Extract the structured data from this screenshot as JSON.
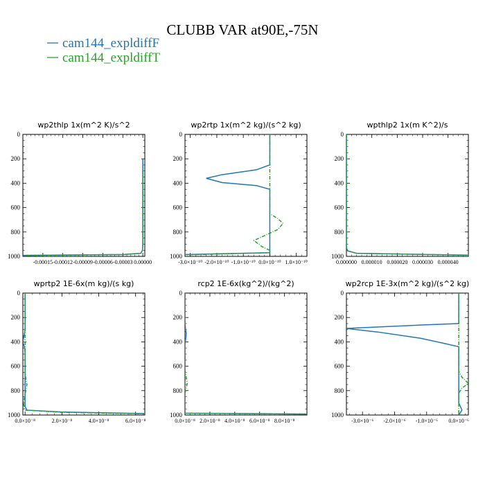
{
  "figure": {
    "title": "CLUBB VAR at90E,-75N",
    "legend": [
      {
        "name": "cam144_expldiffF",
        "color": "#1f77b4"
      },
      {
        "name": "cam144_expldiffT",
        "color": "#2ca02c"
      }
    ]
  },
  "chart_data": [
    {
      "type": "line",
      "title": "wp2thlp   1x(m^2 K)/s^2",
      "ylim": [
        1000,
        0
      ],
      "xlim": [
        -0.00018,
        3e-06
      ],
      "yticks": [
        0,
        200,
        400,
        600,
        800,
        1000
      ],
      "ytick_labels": [
        "0",
        "200",
        "400",
        "600",
        "800",
        "1000"
      ],
      "xticks": [
        -0.00015,
        -0.00012,
        -9e-05,
        -6e-05,
        -3e-05,
        0.0
      ],
      "xtick_labels": [
        "-0.00015",
        "-0.00012",
        "-0.00009",
        "-0.00006",
        "-0.00003",
        "0.00000"
      ],
      "series": [
        {
          "name": "cam144_expldiffF",
          "dashed": false,
          "color": "#1f77b4",
          "x": [
            0,
            0,
            0,
            0,
            -5e-07,
            -3e-06,
            -3e-05,
            -0.00018
          ],
          "y": [
            200,
            300,
            800,
            900,
            950,
            975,
            985,
            992
          ]
        },
        {
          "name": "cam144_expldiffT",
          "dashed": true,
          "color": "#2ca02c",
          "x": [
            0,
            0,
            0,
            -5e-07,
            -3e-06,
            -3e-05,
            -0.00018
          ],
          "y": [
            300,
            800,
            900,
            950,
            975,
            985,
            992
          ]
        }
      ]
    },
    {
      "type": "line",
      "title": "wp2rtp   1x(m^2 kg)/(s^2 kg)",
      "ylim": [
        1000,
        0
      ],
      "xlim": [
        -3.2e-10,
        1.4e-10
      ],
      "yticks": [
        0,
        200,
        400,
        600,
        800,
        1000
      ],
      "ytick_labels": [
        "0",
        "200",
        "400",
        "600",
        "800",
        "1000"
      ],
      "xticks": [
        -3e-10,
        -2e-10,
        -1e-10,
        0,
        1e-10
      ],
      "xtick_labels": [
        "-3.0×10⁻¹⁰",
        "-2.0×10⁻¹⁰",
        "-1.0×10⁻¹⁰",
        "0.0×10⁻¹⁰",
        "1.0×10⁻¹⁰"
      ],
      "series": [
        {
          "name": "cam144_expldiffF",
          "dashed": false,
          "color": "#1f77b4",
          "x": [
            0,
            0,
            -5e-11,
            -1.8e-10,
            -2.4e-10,
            -1.8e-10,
            -5e-11,
            0,
            0,
            -3.2e-10
          ],
          "y": [
            0,
            250,
            290,
            330,
            360,
            395,
            420,
            450,
            970,
            985
          ]
        },
        {
          "name": "cam144_expldiffT",
          "dashed": true,
          "color": "#2ca02c",
          "x": [
            0,
            0,
            3e-11,
            5e-11,
            3e-11,
            0,
            -3e-11,
            -6e-11,
            -3e-11,
            0,
            0,
            -3.2e-10
          ],
          "y": [
            0,
            650,
            690,
            730,
            780,
            810,
            840,
            870,
            920,
            950,
            970,
            988
          ]
        }
      ]
    },
    {
      "type": "line",
      "title": "wpthlp2   1x(m K^2)/s",
      "ylim": [
        1000,
        0
      ],
      "xlim": [
        0,
        4.8e-05
      ],
      "yticks": [
        0,
        200,
        400,
        600,
        800,
        1000
      ],
      "ytick_labels": [
        "0",
        "200",
        "400",
        "600",
        "800",
        "1000"
      ],
      "xticks": [
        0,
        1e-05,
        2e-05,
        3e-05,
        4e-05
      ],
      "xtick_labels": [
        "0.000000",
        "0.000010",
        "0.000020",
        "0.000030",
        "0.000040"
      ],
      "series": [
        {
          "name": "cam144_expldiffF",
          "dashed": false,
          "color": "#1f77b4",
          "x": [
            0,
            0,
            5e-07,
            4e-06,
            4.8e-05
          ],
          "y": [
            0,
            930,
            955,
            975,
            990
          ]
        },
        {
          "name": "cam144_expldiffT",
          "dashed": true,
          "color": "#2ca02c",
          "x": [
            0,
            0,
            5e-07,
            4e-06,
            4.8e-05
          ],
          "y": [
            0,
            930,
            955,
            975,
            990
          ]
        }
      ]
    },
    {
      "type": "line",
      "title": "wprtp2   1E-6x(m kg)/(s kg)",
      "ylim": [
        1000,
        0
      ],
      "xlim": [
        -1.2e-09,
        6.5e-08
      ],
      "yticks": [
        0,
        200,
        400,
        600,
        800,
        1000
      ],
      "ytick_labels": [
        "0",
        "200",
        "400",
        "600",
        "800",
        "1000"
      ],
      "xticks": [
        0,
        2e-08,
        4e-08,
        6e-08
      ],
      "xtick_labels": [
        "0.0×10⁻⁸",
        "2.0×10⁻⁸",
        "4.0×10⁻⁸",
        "6.0×10⁻⁸"
      ],
      "series": [
        {
          "name": "cam144_expldiffF",
          "dashed": false,
          "color": "#1f77b4",
          "x": [
            0,
            0,
            -2e-10,
            -1.2e-09,
            -2e-10,
            0,
            0,
            1e-09,
            2e-08,
            6.5e-08
          ],
          "y": [
            0,
            280,
            320,
            400,
            450,
            500,
            930,
            960,
            975,
            988
          ]
        },
        {
          "name": "cam144_expldiffT",
          "dashed": true,
          "color": "#2ca02c",
          "x": [
            0,
            0,
            4e-10,
            1e-09,
            4e-10,
            0,
            -4e-10,
            -9e-10,
            -4e-10,
            0,
            2e-08,
            6.5e-08
          ],
          "y": [
            0,
            650,
            700,
            750,
            800,
            830,
            860,
            900,
            940,
            960,
            978,
            990
          ]
        }
      ]
    },
    {
      "type": "line",
      "title": "rcp2   1E-6x(kg^2)/(kg^2)",
      "ylim": [
        1000,
        0
      ],
      "xlim": [
        0,
        9.8e-08
      ],
      "yticks": [
        0,
        200,
        400,
        600,
        800,
        1000
      ],
      "ytick_labels": [
        "0",
        "200",
        "400",
        "600",
        "800",
        "1000"
      ],
      "xticks": [
        0,
        2e-08,
        4e-08,
        6e-08,
        8e-08
      ],
      "xtick_labels": [
        "0.0×10⁻⁸",
        "2.0×10⁻⁸",
        "4.0×10⁻⁸",
        "6.0×10⁻⁸",
        "8.0×10⁻⁸"
      ],
      "series": [
        {
          "name": "cam144_expldiffF",
          "dashed": false,
          "color": "#1f77b4",
          "x": [
            0,
            0,
            5e-10,
            1e-09,
            5e-10,
            0,
            0,
            9.8e-08
          ],
          "y": [
            0,
            250,
            300,
            330,
            380,
            420,
            985,
            992
          ]
        },
        {
          "name": "cam144_expldiffT",
          "dashed": true,
          "color": "#2ca02c",
          "x": [
            0,
            0,
            8e-10,
            1.8e-09,
            8e-10,
            0,
            0,
            9.8e-08
          ],
          "y": [
            0,
            640,
            680,
            740,
            790,
            820,
            985,
            992
          ]
        }
      ]
    },
    {
      "type": "line",
      "title": "wp2rcp   1E-3x(m^2 kg)/(s^2 kg)",
      "ylim": [
        1000,
        0
      ],
      "xlim": [
        -3.5e-06,
        3e-07
      ],
      "yticks": [
        0,
        200,
        400,
        600,
        800,
        1000
      ],
      "ytick_labels": [
        "0",
        "200",
        "400",
        "600",
        "800",
        "1000"
      ],
      "xticks": [
        -3e-06,
        -2e-06,
        -1e-06,
        0
      ],
      "xtick_labels": [
        "-3.0×10⁻⁶",
        "-2.0×10⁻⁶",
        "-1.0×10⁻⁶",
        "0.0×10⁻⁶"
      ],
      "series": [
        {
          "name": "cam144_expldiffF",
          "dashed": false,
          "color": "#1f77b4",
          "x": [
            0,
            0,
            -1e-06,
            -3.5e-06,
            -2.5e-06,
            -1.2e-06,
            -5e-07,
            0,
            0,
            1e-07,
            0
          ],
          "y": [
            0,
            250,
            260,
            290,
            320,
            370,
            410,
            440,
            900,
            960,
            1000
          ]
        },
        {
          "name": "cam144_expldiffT",
          "dashed": true,
          "color": "#2ca02c",
          "x": [
            0,
            0,
            1e-07,
            3e-07,
            1e-07,
            0,
            0
          ],
          "y": [
            0,
            640,
            690,
            740,
            780,
            820,
            1000
          ]
        }
      ]
    }
  ]
}
